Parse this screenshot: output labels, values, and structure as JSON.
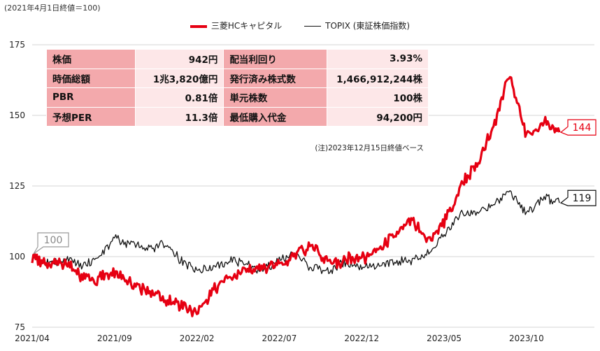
{
  "header": {
    "base_note": "(2021年4月1日終値＝100)"
  },
  "legend": [
    {
      "name": "三菱HCキャピタル",
      "color": "#e60012"
    },
    {
      "name": "TOPIX (東証株価指数)",
      "color": "#111111"
    }
  ],
  "info_table": {
    "rows": [
      [
        {
          "label": "株価",
          "value": "942円"
        },
        {
          "label": "配当利回り",
          "value": "3.93%"
        }
      ],
      [
        {
          "label": "時価総額",
          "value": "1兆3,820億円"
        },
        {
          "label": "発行済み株式数",
          "value": "1,466,912,244株"
        }
      ],
      [
        {
          "label": "PBR",
          "value": "0.81倍"
        },
        {
          "label": "単元株数",
          "value": "100株"
        }
      ],
      [
        {
          "label": "予想PER",
          "value": "11.3倍"
        },
        {
          "label": "最低購入代金",
          "value": "94,200円"
        }
      ]
    ],
    "note": "(注)2023年12月15日終値ベース"
  },
  "chart_data": {
    "type": "line",
    "x_tick_labels": [
      "2021/04",
      "2021/09",
      "2022/02",
      "2022/07",
      "2022/12",
      "2023/05",
      "2023/10"
    ],
    "y_ticks": [
      75,
      100,
      125,
      150,
      175
    ],
    "ylim": [
      75,
      175
    ],
    "grid": "horizontal",
    "legend_position": "top-center",
    "start_callout": "100",
    "series": [
      {
        "name": "三菱HCキャピタル",
        "color": "#e60012",
        "end_label": "144",
        "months": [
          "2021/04",
          "2021/05",
          "2021/06",
          "2021/07",
          "2021/08",
          "2021/09",
          "2021/10",
          "2021/11",
          "2021/12",
          "2022/01",
          "2022/02",
          "2022/03",
          "2022/04",
          "2022/05",
          "2022/06",
          "2022/07",
          "2022/08",
          "2022/09",
          "2022/10",
          "2022/11",
          "2022/12",
          "2023/01",
          "2023/02",
          "2023/03",
          "2023/04",
          "2023/05",
          "2023/06",
          "2023/07",
          "2023/08",
          "2023/09",
          "2023/10",
          "2023/11",
          "2023/12"
        ],
        "values": [
          100,
          97,
          98,
          93,
          92,
          94,
          91,
          88,
          85,
          83,
          80,
          88,
          93,
          95,
          96,
          97,
          101,
          104,
          98,
          99,
          99,
          103,
          108,
          113,
          105,
          112,
          125,
          133,
          146,
          165,
          143,
          148,
          144
        ]
      },
      {
        "name": "TOPIX (東証株価指数)",
        "color": "#111111",
        "end_label": "119",
        "months": [
          "2021/04",
          "2021/05",
          "2021/06",
          "2021/07",
          "2021/08",
          "2021/09",
          "2021/10",
          "2021/11",
          "2021/12",
          "2022/01",
          "2022/02",
          "2022/03",
          "2022/04",
          "2022/05",
          "2022/06",
          "2022/07",
          "2022/08",
          "2022/09",
          "2022/10",
          "2022/11",
          "2022/12",
          "2023/01",
          "2023/02",
          "2023/03",
          "2023/04",
          "2023/05",
          "2023/06",
          "2023/07",
          "2023/08",
          "2023/09",
          "2023/10",
          "2023/11",
          "2023/12"
        ],
        "values": [
          100,
          98,
          99,
          97,
          99,
          107,
          104,
          103,
          104,
          99,
          95,
          96,
          99,
          97,
          95,
          99,
          101,
          96,
          95,
          98,
          96,
          97,
          98,
          99,
          101,
          108,
          115,
          116,
          118,
          123,
          115,
          121,
          119
        ]
      }
    ]
  }
}
